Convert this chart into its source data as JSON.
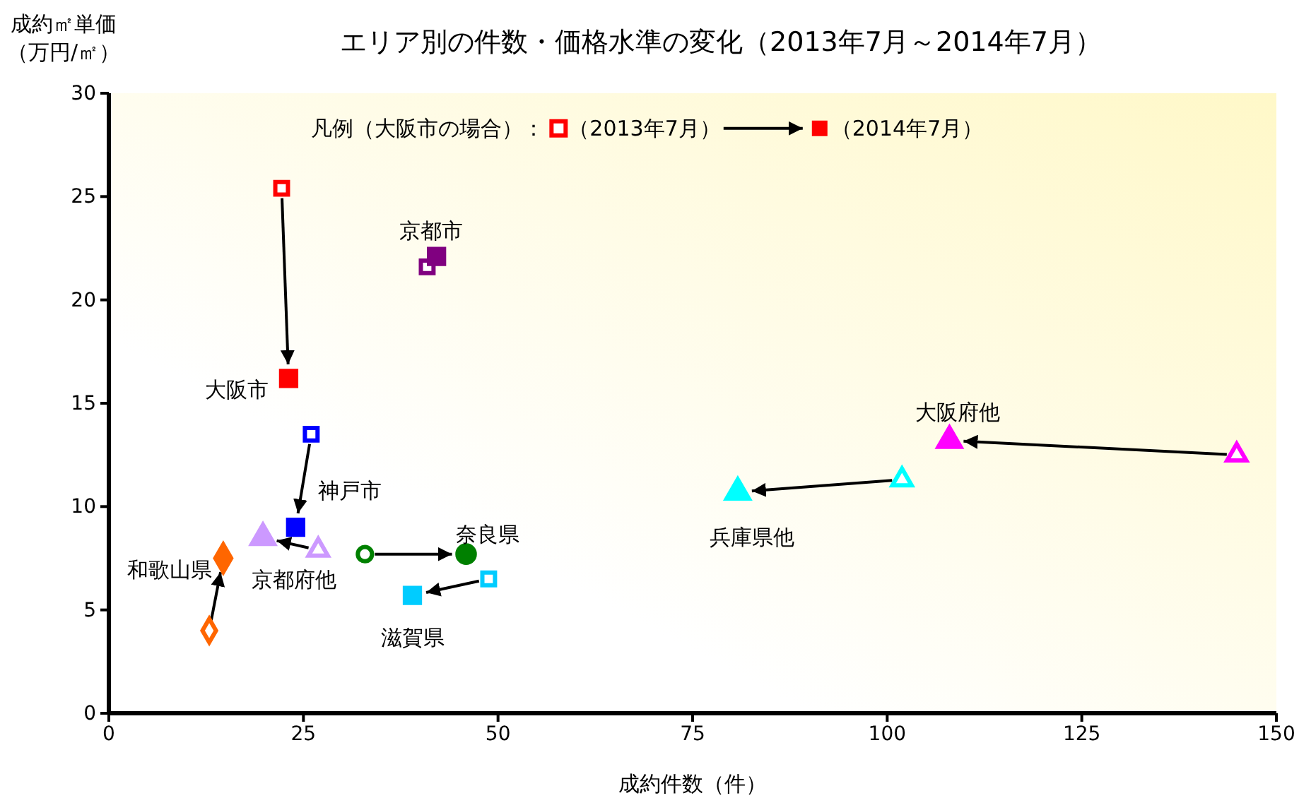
{
  "chart_data": {
    "type": "scatter",
    "title": "エリア別の件数・価格水準の変化（2013年7月～2014年7月）",
    "xlabel": "成約件数（件）",
    "ylabel": "成約㎡単価（万円/㎡）",
    "xlim": [
      0,
      150
    ],
    "xticks": [
      0,
      25,
      50,
      75,
      100,
      125,
      150
    ],
    "ylim": [
      0,
      30
    ],
    "yticks": [
      0,
      5,
      10,
      15,
      20,
      25,
      30
    ],
    "grid": false,
    "annotations": [
      "凡例（大阪市の場合）：",
      "（2013年7月）",
      "（2014年7月）"
    ],
    "series": [
      {
        "name": "大阪市",
        "color": "#ff0000",
        "marker": "square",
        "x": [
          22.2,
          23.1
        ],
        "values": [
          25.4,
          16.2
        ]
      },
      {
        "name": "京都市",
        "color": "#800080",
        "marker": "square",
        "x": [
          40.9,
          42.1
        ],
        "values": [
          21.6,
          22.1
        ]
      },
      {
        "name": "神戸市",
        "color": "#0000ff",
        "marker": "square",
        "x": [
          26.0,
          24.0
        ],
        "values": [
          13.5,
          9.0
        ]
      },
      {
        "name": "京都府他",
        "color": "#cc99ff",
        "marker": "triangle",
        "x": [
          26.9,
          19.8
        ],
        "values": [
          7.9,
          8.5
        ]
      },
      {
        "name": "和歌山県",
        "color": "#ff6600",
        "marker": "diamond",
        "x": [
          12.9,
          14.7
        ],
        "values": [
          4.0,
          7.5
        ]
      },
      {
        "name": "奈良県",
        "color": "#008000",
        "marker": "circle",
        "x": [
          32.9,
          45.9
        ],
        "values": [
          7.7,
          7.7
        ]
      },
      {
        "name": "滋賀県",
        "color": "#00ccff",
        "marker": "square",
        "x": [
          48.8,
          39.0
        ],
        "values": [
          6.5,
          5.7
        ]
      },
      {
        "name": "兵庫県他",
        "color": "#00ffff",
        "marker": "triangle",
        "x": [
          101.9,
          80.8
        ],
        "values": [
          11.3,
          10.7
        ]
      },
      {
        "name": "大阪府他",
        "color": "#ff00ff",
        "marker": "triangle",
        "x": [
          144.9,
          108.0
        ],
        "values": [
          12.5,
          13.2
        ]
      }
    ]
  }
}
